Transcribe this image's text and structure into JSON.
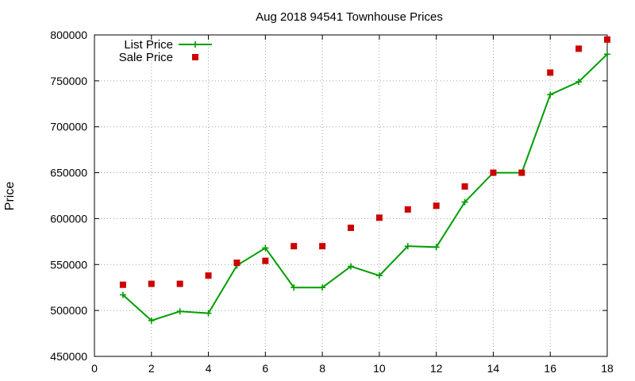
{
  "chart_data": {
    "type": "line",
    "title": "Aug 2018 94541 Townhouse Prices",
    "xlabel": "",
    "ylabel": "Price",
    "xlim": [
      0,
      18
    ],
    "ylim": [
      450000,
      800000
    ],
    "xticks": [
      0,
      2,
      4,
      6,
      8,
      10,
      12,
      14,
      16,
      18
    ],
    "yticks": [
      450000,
      500000,
      550000,
      600000,
      650000,
      700000,
      750000,
      800000
    ],
    "grid": true,
    "legend_position": "top-left",
    "x": [
      1,
      2,
      3,
      4,
      5,
      6,
      7,
      8,
      9,
      10,
      11,
      12,
      13,
      14,
      15,
      16,
      17,
      18
    ],
    "series": [
      {
        "name": "List Price",
        "style": "line-plus",
        "color": "#009e00",
        "values": [
          517000,
          489000,
          499000,
          497000,
          549000,
          568000,
          525000,
          525000,
          548000,
          538000,
          570000,
          569000,
          618000,
          650000,
          650000,
          735000,
          749000,
          779000
        ]
      },
      {
        "name": "Sale Price",
        "style": "square-points",
        "color": "#cc0000",
        "values": [
          528000,
          529000,
          529000,
          538000,
          552000,
          554000,
          570000,
          570000,
          590000,
          601000,
          610000,
          614000,
          635000,
          650000,
          650000,
          759000,
          785000,
          795000
        ]
      }
    ]
  }
}
